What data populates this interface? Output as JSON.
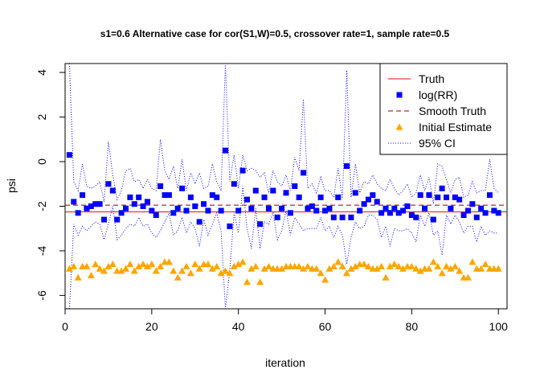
{
  "chart_data": {
    "type": "scatter",
    "title": "s1=0.6 Alternative case for cor(S1,W)=0.5, crossover rate=1, sample rate=0.5",
    "xlabel": "iteration",
    "ylabel": "psi",
    "xlim": [
      0,
      102
    ],
    "ylim": [
      -6.6,
      4.4
    ],
    "x_ticks": [
      "0",
      "20",
      "40",
      "60",
      "80",
      "100"
    ],
    "y_ticks": [
      "-6",
      "-4",
      "-2",
      "0",
      "2",
      "4"
    ],
    "colors": {
      "truth": "#ff0000",
      "log_rr": "#0000ff",
      "smooth_truth": "#8b0000",
      "initial_estimate": "#ffa500",
      "ci": "#0000ff"
    },
    "truth": -2.25,
    "smooth_truth": -1.95,
    "legend": {
      "position": "top-right",
      "entries": [
        "Truth",
        "log(RR)",
        "Smooth Truth",
        "Initial Estimate",
        "95% CI"
      ]
    },
    "x": [
      1,
      2,
      3,
      4,
      5,
      6,
      7,
      8,
      9,
      10,
      11,
      12,
      13,
      14,
      15,
      16,
      17,
      18,
      19,
      20,
      21,
      22,
      23,
      24,
      25,
      26,
      27,
      28,
      29,
      30,
      31,
      32,
      33,
      34,
      35,
      36,
      37,
      38,
      39,
      40,
      41,
      42,
      43,
      44,
      45,
      46,
      47,
      48,
      49,
      50,
      51,
      52,
      53,
      54,
      55,
      56,
      57,
      58,
      59,
      60,
      61,
      62,
      63,
      64,
      65,
      66,
      67,
      68,
      69,
      70,
      71,
      72,
      73,
      74,
      75,
      76,
      77,
      78,
      79,
      80,
      81,
      82,
      83,
      84,
      85,
      86,
      87,
      88,
      89,
      90,
      91,
      92,
      93,
      94,
      95,
      96,
      97,
      98,
      99,
      100
    ],
    "series": [
      {
        "name": "log(RR)",
        "values": [
          0.3,
          -1.8,
          -2.3,
          -1.5,
          -2.1,
          -2.0,
          -1.9,
          -1.9,
          -2.6,
          -1.0,
          -1.3,
          -2.6,
          -2.3,
          -2.1,
          -1.6,
          -1.9,
          -1.6,
          -2.0,
          -1.8,
          -2.2,
          -2.4,
          -1.1,
          -1.5,
          -1.5,
          -2.3,
          -2.1,
          -1.2,
          -2.2,
          -1.6,
          -2.0,
          -2.7,
          -1.9,
          -2.2,
          -1.5,
          -1.6,
          -2.2,
          0.5,
          -2.9,
          -1.0,
          -2.2,
          -0.4,
          -1.7,
          -2.1,
          -1.3,
          -2.8,
          -1.6,
          -2.1,
          -1.3,
          -2.5,
          -2.1,
          -1.4,
          -2.3,
          -1.1,
          -1.6,
          -0.5,
          -2.1,
          -2.0,
          -2.2,
          -1.6,
          -2.2,
          -2.1,
          -2.5,
          -1.6,
          -2.5,
          -0.2,
          -2.5,
          -1.4,
          -2.2,
          -1.9,
          -1.7,
          -1.5,
          -1.8,
          -2.3,
          -2.1,
          -2.3,
          -2.1,
          -2.3,
          -2.2,
          -2.0,
          -2.4,
          -2.5,
          -1.5,
          -2.1,
          -1.5,
          -2.6,
          -1.6,
          -1.2,
          -1.6,
          -2.1,
          -1.6,
          -1.7,
          -2.4,
          -2.2,
          -1.9,
          -2.5,
          -2.1,
          -2.3,
          -1.5,
          -2.2,
          -2.3
        ]
      },
      {
        "name": "Initial Estimate",
        "values": [
          -4.8,
          -4.7,
          -5.2,
          -4.7,
          -4.7,
          -5.1,
          -4.6,
          -4.8,
          -4.9,
          -4.7,
          -4.6,
          -4.9,
          -4.9,
          -4.8,
          -4.6,
          -4.9,
          -4.7,
          -4.6,
          -4.7,
          -4.6,
          -4.9,
          -4.7,
          -4.5,
          -4.5,
          -4.9,
          -5.2,
          -4.9,
          -4.7,
          -5.0,
          -4.6,
          -4.8,
          -4.6,
          -4.6,
          -4.8,
          -4.7,
          -5.0,
          -4.9,
          -5.0,
          -4.7,
          -4.6,
          -4.5,
          -5.4,
          -4.8,
          -4.7,
          -5.4,
          -4.8,
          -4.7,
          -4.8,
          -4.8,
          -4.8,
          -4.7,
          -4.7,
          -4.7,
          -4.7,
          -4.8,
          -4.7,
          -4.8,
          -4.8,
          -5.0,
          -5.3,
          -4.8,
          -4.7,
          -4.5,
          -4.7,
          -5.0,
          -4.8,
          -4.7,
          -4.6,
          -4.6,
          -4.7,
          -4.8,
          -4.8,
          -4.7,
          -5.2,
          -4.7,
          -4.6,
          -4.7,
          -4.8,
          -4.7,
          -4.7,
          -4.8,
          -4.9,
          -4.8,
          -4.8,
          -4.5,
          -4.7,
          -5.0,
          -4.7,
          -4.8,
          -4.7,
          -4.9,
          -5.2,
          -5.2,
          -4.5,
          -4.8,
          -4.8,
          -4.6,
          -4.8,
          -4.8,
          -4.8
        ]
      },
      {
        "name": "95% CI upper",
        "values": [
          4.4,
          -0.9,
          -1.3,
          -0.1,
          -1.1,
          -1.2,
          -1.1,
          -0.9,
          -1.8,
          0.9,
          -0.6,
          -1.7,
          -1.3,
          -0.4,
          -0.3,
          -0.9,
          -0.8,
          -1.2,
          -0.8,
          -1.2,
          -1.3,
          1.0,
          -0.4,
          -0.8,
          -0.2,
          -1.2,
          0.1,
          -1.3,
          -0.5,
          -1.0,
          -0.5,
          -1.2,
          -1.1,
          -0.1,
          -0.9,
          -1.3,
          4.4,
          -0.9,
          0.3,
          -1.2,
          0.3,
          -0.4,
          -0.3,
          -0.4,
          -0.7,
          -0.5,
          -1.4,
          -0.4,
          -0.9,
          -1.1,
          -0.6,
          -1.3,
          0.2,
          -0.4,
          2.8,
          -1.2,
          -1.0,
          -1.4,
          -0.7,
          -1.3,
          -1.3,
          -1.6,
          -0.3,
          -1.7,
          4.1,
          -1.6,
          -0.1,
          -1.4,
          -0.9,
          -1.0,
          -0.6,
          -1.0,
          -1.2,
          -1.3,
          -0.8,
          -1.2,
          -1.5,
          -1.3,
          -1.0,
          -1.6,
          -1.4,
          -0.6,
          -1.3,
          -0.7,
          -1.9,
          -0.1,
          -0.2,
          -0.8,
          -1.4,
          -0.8,
          -0.7,
          -1.6,
          -1.5,
          -0.9,
          -1.4,
          -1.3,
          -1.3,
          0.1,
          -1.2,
          -1.4
        ]
      },
      {
        "name": "95% CI lower",
        "values": [
          -6.6,
          -2.8,
          -3.3,
          -2.9,
          -3.1,
          -2.9,
          -2.7,
          -2.8,
          -3.5,
          -2.8,
          -2.0,
          -3.5,
          -3.3,
          -3.0,
          -2.8,
          -2.9,
          -2.5,
          -2.9,
          -2.8,
          -3.2,
          -3.4,
          -3.1,
          -2.7,
          -2.3,
          -3.3,
          -3.1,
          -2.5,
          -3.2,
          -2.7,
          -3.0,
          -3.8,
          -2.6,
          -3.3,
          -2.8,
          -2.3,
          -3.1,
          -6.6,
          -4.9,
          -2.3,
          -3.2,
          -1.1,
          -3.0,
          -3.9,
          -2.1,
          -3.9,
          -2.7,
          -2.8,
          -2.3,
          -3.5,
          -3.1,
          -2.2,
          -3.3,
          -2.5,
          -2.8,
          -3.1,
          -3.0,
          -3.0,
          -3.0,
          -2.5,
          -3.1,
          -2.9,
          -3.4,
          -2.9,
          -3.3,
          -4.6,
          -3.4,
          -2.7,
          -3.0,
          -2.9,
          -2.4,
          -2.4,
          -2.6,
          -3.4,
          -2.9,
          -3.8,
          -3.0,
          -3.1,
          -3.1,
          -3.0,
          -3.2,
          -3.6,
          -2.4,
          -2.9,
          -2.3,
          -3.3,
          -3.1,
          -4.2,
          -2.4,
          -2.8,
          -2.4,
          -2.7,
          -3.2,
          -2.9,
          -2.9,
          -3.6,
          -2.9,
          -3.3,
          -3.1,
          -3.2,
          -3.2
        ]
      }
    ]
  }
}
